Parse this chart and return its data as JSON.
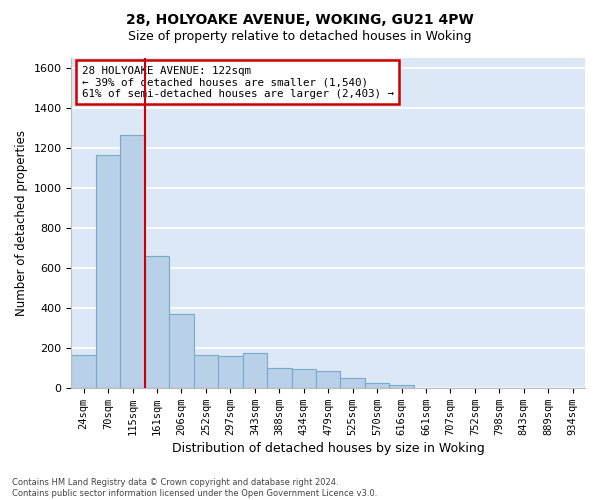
{
  "title1": "28, HOLYOAKE AVENUE, WOKING, GU21 4PW",
  "title2": "Size of property relative to detached houses in Woking",
  "xlabel": "Distribution of detached houses by size in Woking",
  "ylabel": "Number of detached properties",
  "footnote": "Contains HM Land Registry data © Crown copyright and database right 2024.\nContains public sector information licensed under the Open Government Licence v3.0.",
  "categories": [
    "24sqm",
    "70sqm",
    "115sqm",
    "161sqm",
    "206sqm",
    "252sqm",
    "297sqm",
    "343sqm",
    "388sqm",
    "434sqm",
    "479sqm",
    "525sqm",
    "570sqm",
    "616sqm",
    "661sqm",
    "707sqm",
    "752sqm",
    "798sqm",
    "843sqm",
    "889sqm",
    "934sqm"
  ],
  "values": [
    165,
    1165,
    1265,
    660,
    370,
    165,
    160,
    175,
    100,
    95,
    85,
    50,
    25,
    12,
    0,
    0,
    0,
    0,
    0,
    0,
    0
  ],
  "bar_color": "#b8d0e8",
  "bar_edge_color": "#7aaac8",
  "background_color": "#dce8f5",
  "grid_color": "#ffffff",
  "vline_color": "#cc0000",
  "vline_x": 2.5,
  "annotation_text": "28 HOLYOAKE AVENUE: 122sqm\n← 39% of detached houses are smaller (1,540)\n61% of semi-detached houses are larger (2,403) →",
  "annotation_box_edgecolor": "#cc0000",
  "ylim": [
    0,
    1650
  ],
  "yticks": [
    0,
    200,
    400,
    600,
    800,
    1000,
    1200,
    1400,
    1600
  ]
}
